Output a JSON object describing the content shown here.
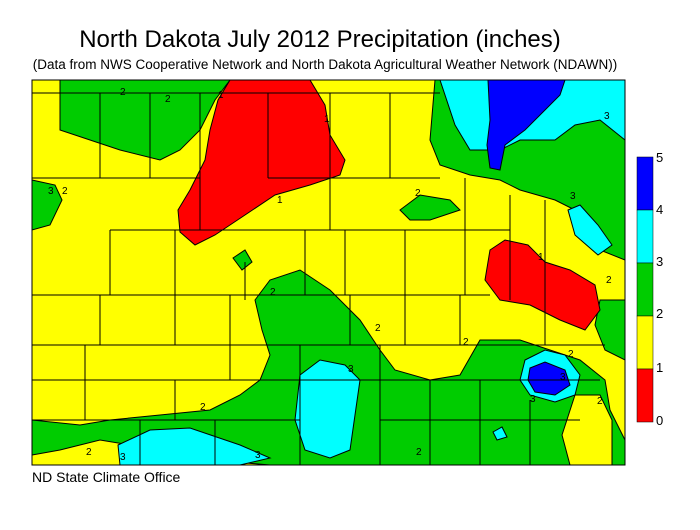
{
  "header": {
    "title": "North Dakota July 2012 Precipitation (inches)",
    "subtitle": "(Data from NWS Cooperative Network and North Dakota Agricultural Weather Network (NDAWN))"
  },
  "footer": {
    "credit": "ND State Climate Office"
  },
  "legend": {
    "bins": [
      {
        "from": 0,
        "to": 1,
        "color": "#ff0000"
      },
      {
        "from": 1,
        "to": 2,
        "color": "#ffff00"
      },
      {
        "from": 2,
        "to": 3,
        "color": "#00cc00"
      },
      {
        "from": 3,
        "to": 4,
        "color": "#00ffff"
      },
      {
        "from": 4,
        "to": 5,
        "color": "#0000ff"
      }
    ],
    "labels": [
      "5",
      "4",
      "3",
      "2",
      "1",
      "0"
    ]
  },
  "contour_labels": [
    "1",
    "2",
    "3"
  ],
  "colors": {
    "yellow": "#ffff00",
    "green": "#00cc00",
    "red": "#ff0000",
    "cyan": "#00ffff",
    "blue": "#0000ff"
  }
}
